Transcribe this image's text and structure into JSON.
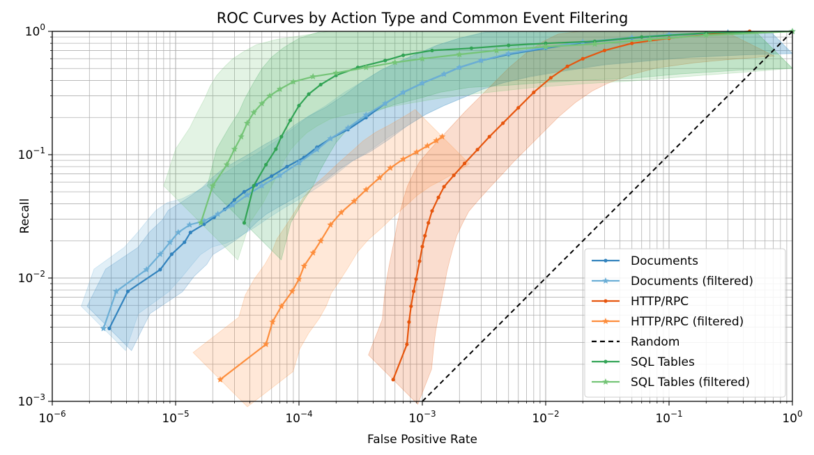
{
  "chart_data": {
    "type": "line",
    "title": "ROC Curves by Action Type and Common Event Filtering",
    "xlabel": "False Positive Rate",
    "ylabel": "Recall",
    "xscale": "log",
    "yscale": "log",
    "xlim": [
      1e-06,
      1
    ],
    "ylim": [
      0.001,
      1
    ],
    "x_ticks": [
      {
        "value": 1e-06,
        "base": "10",
        "exp": "−6"
      },
      {
        "value": 1e-05,
        "base": "10",
        "exp": "−5"
      },
      {
        "value": 0.0001,
        "base": "10",
        "exp": "−4"
      },
      {
        "value": 0.001,
        "base": "10",
        "exp": "−3"
      },
      {
        "value": 0.01,
        "base": "10",
        "exp": "−2"
      },
      {
        "value": 0.1,
        "base": "10",
        "exp": "−1"
      },
      {
        "value": 1,
        "base": "10",
        "exp": "0"
      }
    ],
    "y_ticks": [
      {
        "value": 0.001,
        "base": "10",
        "exp": "−3"
      },
      {
        "value": 0.01,
        "base": "10",
        "exp": "−2"
      },
      {
        "value": 0.1,
        "base": "10",
        "exp": "−1"
      },
      {
        "value": 1,
        "base": "10",
        "exp": "0"
      }
    ],
    "grid": true,
    "legend_position": "lower-right",
    "series": [
      {
        "name": "Documents",
        "color": "#3182bd",
        "marker": "circle",
        "band": 0.18,
        "points": [
          [
            2.9e-06,
            0.0039
          ],
          [
            4.1e-06,
            0.0078
          ],
          [
            7.5e-06,
            0.0117
          ],
          [
            9.3e-06,
            0.0156
          ],
          [
            1.18e-05,
            0.0195
          ],
          [
            1.32e-05,
            0.0234
          ],
          [
            1.7e-05,
            0.0273
          ],
          [
            2.05e-05,
            0.031
          ],
          [
            2.5e-05,
            0.036
          ],
          [
            3e-05,
            0.043
          ],
          [
            3.6e-05,
            0.05
          ],
          [
            4.5e-05,
            0.057
          ],
          [
            6e-05,
            0.067
          ],
          [
            8e-05,
            0.08
          ],
          [
            0.00011,
            0.095
          ],
          [
            0.00014,
            0.115
          ],
          [
            0.00018,
            0.135
          ],
          [
            0.00025,
            0.16
          ],
          [
            0.00035,
            0.2
          ],
          [
            0.0005,
            0.26
          ],
          [
            0.0007,
            0.32
          ],
          [
            0.001,
            0.38
          ],
          [
            0.0015,
            0.45
          ],
          [
            0.002,
            0.51
          ],
          [
            0.003,
            0.58
          ],
          [
            0.005,
            0.65
          ],
          [
            0.01,
            0.73
          ],
          [
            0.02,
            0.81
          ],
          [
            0.05,
            0.88
          ],
          [
            0.1,
            0.93
          ],
          [
            0.3,
            0.98
          ],
          [
            1,
            1
          ]
        ]
      },
      {
        "name": "Documents (filtered)",
        "color": "#6baed6",
        "marker": "star",
        "band": 0.18,
        "points": [
          [
            2.6e-06,
            0.0039
          ],
          [
            3.3e-06,
            0.0078
          ],
          [
            5.8e-06,
            0.0117
          ],
          [
            7.5e-06,
            0.0156
          ],
          [
            9e-06,
            0.0195
          ],
          [
            1.05e-05,
            0.0234
          ],
          [
            1.3e-05,
            0.027
          ],
          [
            1.7e-05,
            0.029
          ],
          [
            2.2e-05,
            0.033
          ],
          [
            2.9e-05,
            0.039
          ],
          [
            3.8e-05,
            0.047
          ],
          [
            5e-05,
            0.056
          ],
          [
            7e-05,
            0.068
          ],
          [
            0.0001,
            0.086
          ],
          [
            0.00014,
            0.11
          ],
          [
            0.00018,
            0.135
          ],
          [
            0.00025,
            0.165
          ],
          [
            0.00035,
            0.21
          ],
          [
            0.0005,
            0.26
          ],
          [
            0.0007,
            0.32
          ],
          [
            0.001,
            0.38
          ],
          [
            0.0015,
            0.45
          ],
          [
            0.002,
            0.51
          ],
          [
            0.003,
            0.58
          ],
          [
            0.005,
            0.66
          ],
          [
            0.01,
            0.74
          ],
          [
            0.02,
            0.82
          ],
          [
            0.05,
            0.89
          ],
          [
            0.1,
            0.94
          ],
          [
            0.3,
            0.98
          ],
          [
            1,
            1
          ]
        ]
      },
      {
        "name": "HTTP/RPC",
        "color": "#e6550d",
        "marker": "circle",
        "band": 0.2,
        "points": [
          [
            0.00058,
            0.0015
          ],
          [
            0.00075,
            0.0029
          ],
          [
            0.00078,
            0.0044
          ],
          [
            0.00081,
            0.0059
          ],
          [
            0.00085,
            0.0078
          ],
          [
            0.00089,
            0.0098
          ],
          [
            0.00095,
            0.0137
          ],
          [
            0.001,
            0.018
          ],
          [
            0.00105,
            0.022
          ],
          [
            0.00112,
            0.028
          ],
          [
            0.0012,
            0.035
          ],
          [
            0.00135,
            0.045
          ],
          [
            0.0015,
            0.055
          ],
          [
            0.0018,
            0.068
          ],
          [
            0.0022,
            0.085
          ],
          [
            0.0028,
            0.11
          ],
          [
            0.0035,
            0.14
          ],
          [
            0.0045,
            0.18
          ],
          [
            0.006,
            0.24
          ],
          [
            0.008,
            0.32
          ],
          [
            0.011,
            0.42
          ],
          [
            0.015,
            0.52
          ],
          [
            0.02,
            0.6
          ],
          [
            0.03,
            0.7
          ],
          [
            0.05,
            0.8
          ],
          [
            0.1,
            0.88
          ],
          [
            0.2,
            0.94
          ],
          [
            0.45,
            1
          ]
        ]
      },
      {
        "name": "HTTP/RPC (filtered)",
        "color": "#fd8d3c",
        "marker": "star",
        "band": 0.22,
        "points": [
          [
            2.3e-05,
            0.0015
          ],
          [
            5.4e-05,
            0.0029
          ],
          [
            6.1e-05,
            0.0044
          ],
          [
            7.2e-05,
            0.0059
          ],
          [
            8.8e-05,
            0.0078
          ],
          [
            0.0001,
            0.0098
          ],
          [
            0.00011,
            0.0125
          ],
          [
            0.00013,
            0.016
          ],
          [
            0.00015,
            0.02
          ],
          [
            0.00018,
            0.027
          ],
          [
            0.00022,
            0.034
          ],
          [
            0.00028,
            0.042
          ],
          [
            0.00035,
            0.052
          ],
          [
            0.00045,
            0.065
          ],
          [
            0.00055,
            0.078
          ],
          [
            0.0007,
            0.092
          ],
          [
            0.0009,
            0.105
          ],
          [
            0.0011,
            0.118
          ],
          [
            0.0013,
            0.13
          ],
          [
            0.00145,
            0.14
          ]
        ]
      },
      {
        "name": "SQL Tables",
        "color": "#31a354",
        "marker": "circle",
        "band": 0.3,
        "points": [
          [
            3.6e-05,
            0.028
          ],
          [
            4.3e-05,
            0.056
          ],
          [
            5.4e-05,
            0.083
          ],
          [
            6.5e-05,
            0.111
          ],
          [
            7.2e-05,
            0.14
          ],
          [
            8.5e-05,
            0.19
          ],
          [
            0.0001,
            0.25
          ],
          [
            0.00012,
            0.31
          ],
          [
            0.00015,
            0.37
          ],
          [
            0.0002,
            0.44
          ],
          [
            0.0003,
            0.51
          ],
          [
            0.0005,
            0.58
          ],
          [
            0.0007,
            0.64
          ],
          [
            0.0012,
            0.7
          ],
          [
            0.0025,
            0.73
          ],
          [
            0.005,
            0.77
          ],
          [
            0.01,
            0.8
          ],
          [
            0.025,
            0.83
          ],
          [
            0.06,
            0.9
          ],
          [
            0.2,
            0.97
          ],
          [
            1,
            1
          ]
        ]
      },
      {
        "name": "SQL Tables (filtered)",
        "color": "#74c476",
        "marker": "star",
        "band": 0.3,
        "points": [
          [
            1.6e-05,
            0.028
          ],
          [
            2e-05,
            0.056
          ],
          [
            2.6e-05,
            0.083
          ],
          [
            3e-05,
            0.111
          ],
          [
            3.4e-05,
            0.14
          ],
          [
            3.8e-05,
            0.18
          ],
          [
            4.3e-05,
            0.22
          ],
          [
            5e-05,
            0.26
          ],
          [
            5.8e-05,
            0.3
          ],
          [
            7e-05,
            0.34
          ],
          [
            9e-05,
            0.39
          ],
          [
            0.00013,
            0.43
          ],
          [
            0.0002,
            0.46
          ],
          [
            0.00035,
            0.51
          ],
          [
            0.0006,
            0.56
          ],
          [
            0.001,
            0.6
          ],
          [
            0.002,
            0.65
          ],
          [
            0.004,
            0.7
          ],
          [
            0.01,
            0.75
          ],
          [
            0.025,
            0.79
          ],
          [
            0.07,
            0.86
          ],
          [
            0.2,
            0.93
          ],
          [
            1,
            1
          ]
        ]
      }
    ],
    "random_line": {
      "name": "Random",
      "color": "#000000",
      "style": "dashed",
      "points": [
        [
          0.001,
          0.001
        ],
        [
          1,
          1
        ]
      ]
    },
    "legend": [
      {
        "label": "Documents",
        "color": "#3182bd",
        "style": "solid",
        "marker": "circle"
      },
      {
        "label": "Documents (filtered)",
        "color": "#6baed6",
        "style": "solid",
        "marker": "star"
      },
      {
        "label": "HTTP/RPC",
        "color": "#e6550d",
        "style": "solid",
        "marker": "circle"
      },
      {
        "label": "HTTP/RPC (filtered)",
        "color": "#fd8d3c",
        "style": "solid",
        "marker": "star"
      },
      {
        "label": "Random",
        "color": "#000000",
        "style": "dashed",
        "marker": "none"
      },
      {
        "label": "SQL Tables",
        "color": "#31a354",
        "style": "solid",
        "marker": "circle"
      },
      {
        "label": "SQL Tables (filtered)",
        "color": "#74c476",
        "style": "solid",
        "marker": "star"
      }
    ]
  }
}
